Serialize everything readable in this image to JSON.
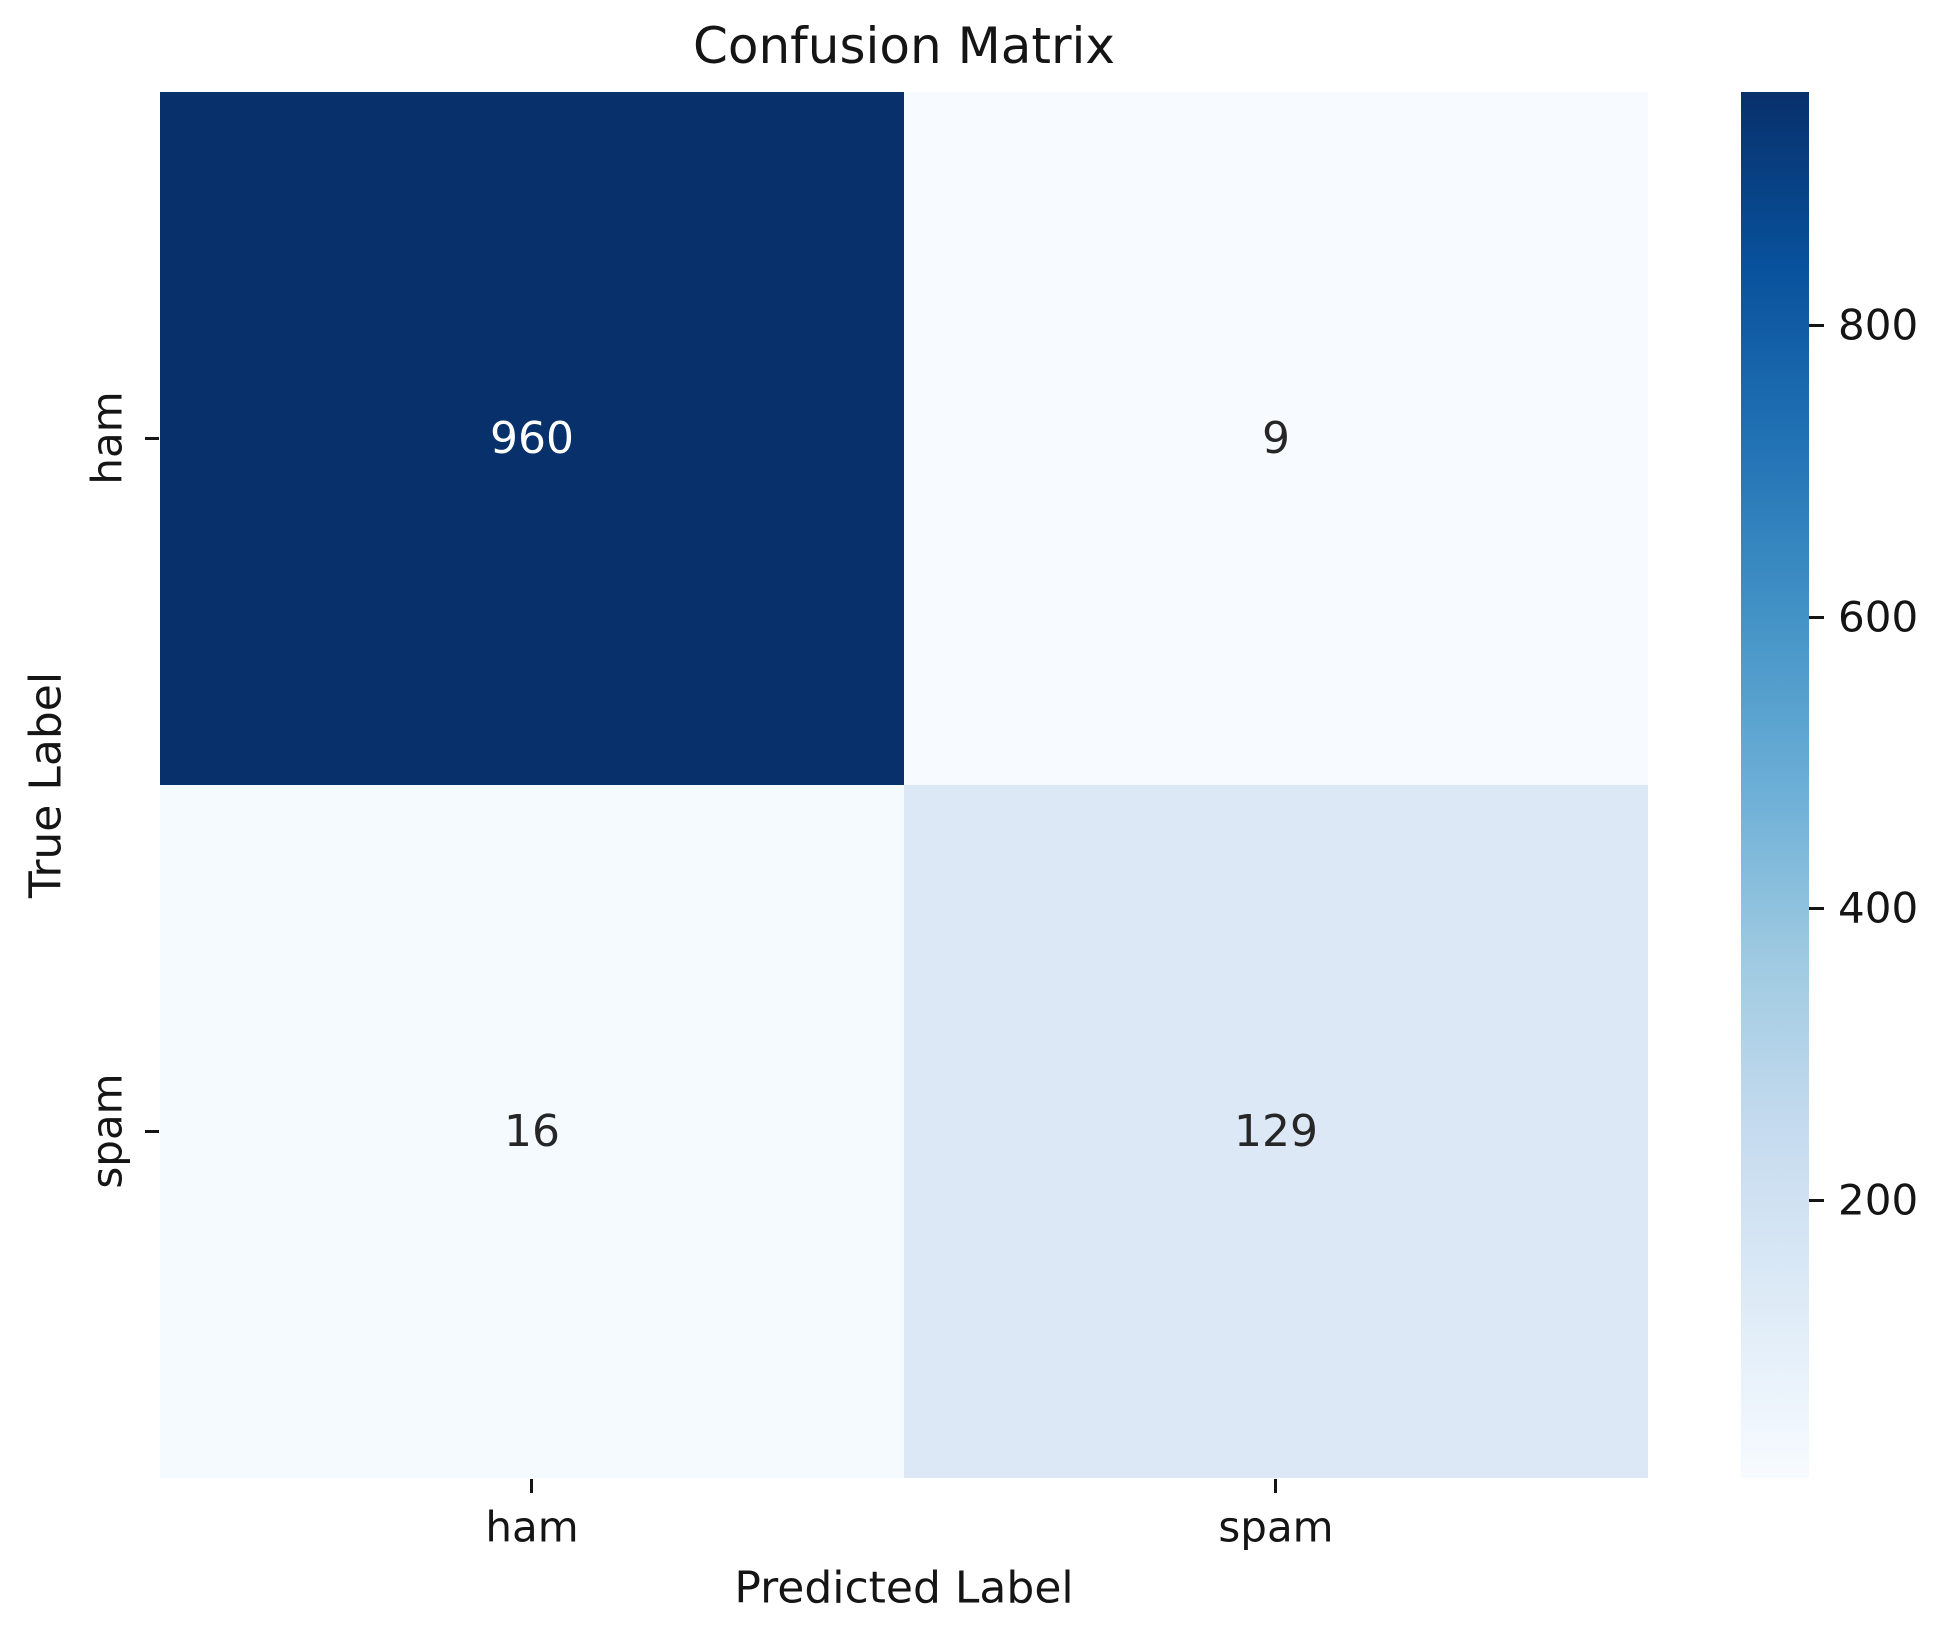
{
  "title": "Confusion Matrix",
  "chart_data": {
    "type": "heatmap",
    "title": "Confusion Matrix",
    "xlabel": "Predicted Label",
    "ylabel": "True Label",
    "x_categories": [
      "ham",
      "spam"
    ],
    "y_categories": [
      "ham",
      "spam"
    ],
    "matrix": [
      [
        960,
        9
      ],
      [
        16,
        129
      ]
    ],
    "colormap": "Blues",
    "vmin": 9,
    "vmax": 960,
    "grid": false,
    "cell_colors": [
      [
        "#08306b",
        "#f7fbff"
      ],
      [
        "#f5fafe",
        "#dce8f5"
      ]
    ],
    "cell_text_colors": [
      [
        "#ffffff",
        "#262626"
      ],
      [
        "#262626",
        "#262626"
      ]
    ],
    "colorbar": {
      "position": "right",
      "ticks": [
        200,
        400,
        600,
        800
      ],
      "gradient_stops": [
        "#f7fbff",
        "#deebf7",
        "#c6dbef",
        "#9ecae1",
        "#6baed6",
        "#4292c6",
        "#2171b5",
        "#08519c",
        "#08306b"
      ]
    }
  }
}
